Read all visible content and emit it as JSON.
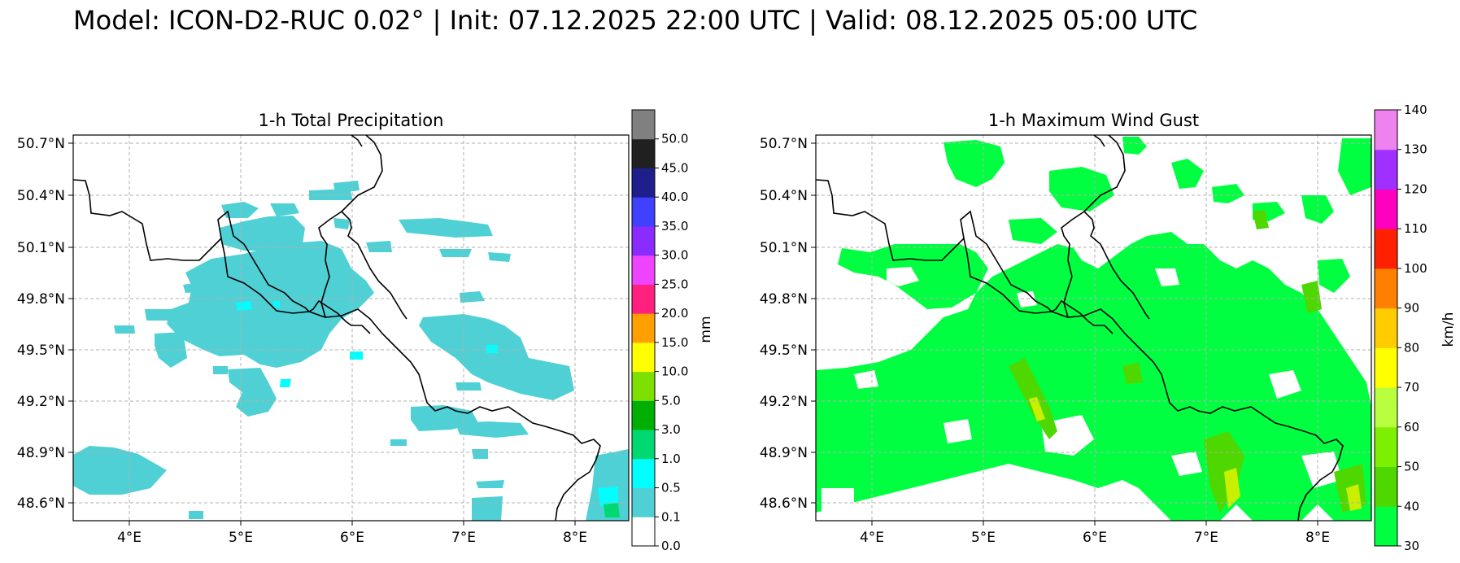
{
  "header": {
    "title": "Model: ICON-D2-RUC 0.02° | Init: 07.12.2025 22:00 UTC | Valid: 08.12.2025 05:00 UTC"
  },
  "panels": [
    {
      "title": "1-h Total Precipitation",
      "x_ticks": [
        "4°E",
        "5°E",
        "6°E",
        "7°E",
        "8°E"
      ],
      "y_ticks": [
        "50.7°N",
        "50.4°N",
        "50.1°N",
        "49.8°N",
        "49.5°N",
        "49.2°N",
        "48.9°N",
        "48.6°N"
      ],
      "colorbar": {
        "label": "mm",
        "ticks": [
          "0.0",
          "0.1",
          "0.5",
          "1.0",
          "3.0",
          "5.0",
          "10.0",
          "15.0",
          "20.0",
          "25.0",
          "30.0",
          "35.0",
          "40.0",
          "45.0",
          "50.0"
        ],
        "colors": [
          "#ffffff",
          "#4fd0d5",
          "#00ffff",
          "#00d972",
          "#00b000",
          "#7ee000",
          "#ffff00",
          "#ffa000",
          "#ff2080",
          "#ee44ff",
          "#8a2bff",
          "#4040ff",
          "#1e1e8c",
          "#202020",
          "#808080"
        ]
      }
    },
    {
      "title": "1-h Maximum Wind Gust",
      "x_ticks": [
        "4°E",
        "5°E",
        "6°E",
        "7°E",
        "8°E"
      ],
      "y_ticks": [
        "50.7°N",
        "50.4°N",
        "50.1°N",
        "49.8°N",
        "49.5°N",
        "49.2°N",
        "48.9°N",
        "48.6°N"
      ],
      "colorbar": {
        "label": "km/h",
        "ticks": [
          "30",
          "40",
          "50",
          "60",
          "70",
          "80",
          "90",
          "100",
          "110",
          "120",
          "130",
          "140"
        ],
        "colors": [
          "#00ff40",
          "#4ed800",
          "#7cf000",
          "#b8ff40",
          "#ffff00",
          "#ffcc00",
          "#ff8000",
          "#ff2000",
          "#ff00c0",
          "#a030ff",
          "#ee82ee"
        ]
      }
    }
  ],
  "colors": {
    "precip_fill": "#4fd0d5",
    "precip_heavy": "#00ffff",
    "wind_fill": "#00ff40",
    "wind_light": "#4ed800",
    "wind_yellow": "#c8f000",
    "border": "#000000",
    "grid": "#b0b0b0"
  }
}
